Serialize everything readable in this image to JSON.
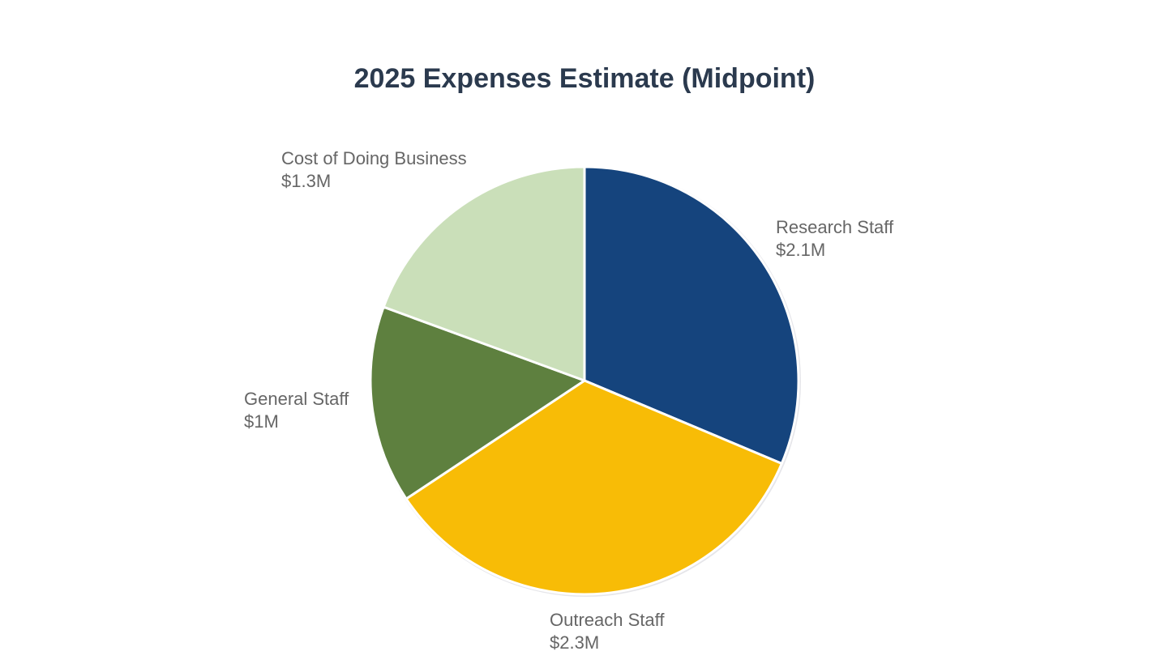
{
  "chart_data": {
    "type": "pie",
    "title": "2025 Expenses Estimate (Midpoint)",
    "slices": [
      {
        "label": "Research Staff",
        "value_label": "$2.1M",
        "value": 2.1,
        "color": "#15447d"
      },
      {
        "label": "Outreach Staff",
        "value_label": "$2.3M",
        "value": 2.3,
        "color": "#f8bc06"
      },
      {
        "label": "General Staff",
        "value_label": "$1M",
        "value": 1.0,
        "color": "#5e803f"
      },
      {
        "label": "Cost of Doing Business",
        "value_label": "$1.3M",
        "value": 1.3,
        "color": "#cadfb9"
      }
    ],
    "start_angle": "top",
    "direction": "clockwise",
    "legend": "none"
  }
}
